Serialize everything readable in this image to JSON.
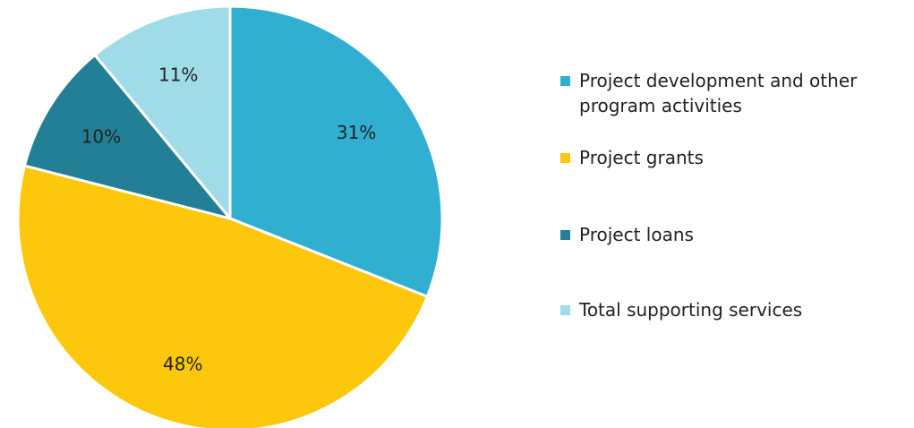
{
  "chart_data": {
    "type": "pie",
    "slices": [
      {
        "label": "Project development and other program activities",
        "value": 31,
        "value_label": "31%",
        "color": "#31AFD0"
      },
      {
        "label": "Project grants",
        "value": 48,
        "value_label": "48%",
        "color": "#FDC70C"
      },
      {
        "label": "Project loans",
        "value": 10,
        "value_label": "10%",
        "color": "#237F95"
      },
      {
        "label": "Total supporting services",
        "value": 11,
        "value_label": "11%",
        "color": "#A0DCE8"
      }
    ],
    "start_angle": "12 o'clock",
    "direction": "clockwise",
    "legend_position": "right"
  }
}
